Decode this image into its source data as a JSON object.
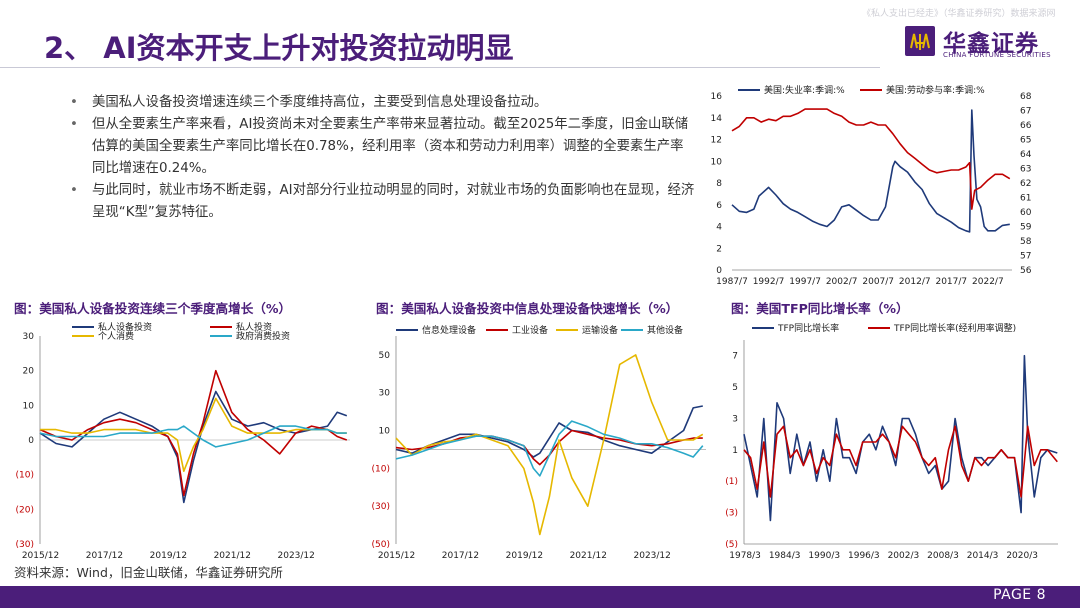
{
  "header": {
    "title": "2、 AI资本开支上升对投资拉动明显",
    "watermark": "《私人支出已经走》（华鑫证券研究）数据来源网",
    "logo_cn": "华鑫证券",
    "logo_en": "CHINA FORTUNE SECURITIES"
  },
  "bullets": [
    "美国私人设备投资增速连续三个季度维持高位，主要受到信息处理设备拉动。",
    "但从全要素生产率来看，AI投资尚未对全要素生产率带来显著拉动。截至2025年二季度，旧金山联储估算的美国全要素生产率同比增长在0.78%，经利用率（资本和劳动力利用率）调整的全要素生产率同比增速在0.24%。",
    "与此同时，就业市场不断走弱，AI对部分行业拉动明显的同时，对就业市场的负面影响也在显现，经济呈现“K型”复苏特征。"
  ],
  "captions": {
    "chart1": "图：美国私人设备投资连续三个季度高增长（%）",
    "chart2": "图：美国私人设备投资中信息处理设备快速增长（%）",
    "chart3": "图：美国TFP同比增长率（%）"
  },
  "source": "资料来源：Wind，旧金山联储，华鑫证券研究所",
  "footer": {
    "page": "PAGE 8"
  },
  "chart_data": [
    {
      "id": "unemployment",
      "type": "line",
      "title": "",
      "x_ticks": [
        "1987/7",
        "1992/7",
        "1997/7",
        "2002/7",
        "2007/7",
        "2012/7",
        "2017/7",
        "2022/7"
      ],
      "x_range": [
        1987.5,
        2025.8
      ],
      "ylim_left": [
        0,
        16
      ],
      "yticks_left": [
        "0",
        "2",
        "4",
        "6",
        "8",
        "10",
        "12",
        "14",
        "16"
      ],
      "ylim_right": [
        56,
        68
      ],
      "yticks_right": [
        "56",
        "57",
        "58",
        "59",
        "60",
        "61",
        "62",
        "63",
        "64",
        "65",
        "66",
        "67",
        "68"
      ],
      "series": [
        {
          "name": "美国:失业率:季调:%",
          "axis": "left",
          "color": "#1f3a7a",
          "x": [
            1987.5,
            1988.5,
            1989.5,
            1990.5,
            1991.2,
            1992.5,
            1993.5,
            1994.5,
            1995.5,
            1996.5,
            1997.5,
            1998.5,
            1999.5,
            2000.5,
            2001.5,
            2002.5,
            2003.5,
            2004.5,
            2005.5,
            2006.5,
            2007.5,
            2008.5,
            2009.5,
            2009.8,
            2010.5,
            2011.5,
            2012.5,
            2013.5,
            2014.5,
            2015.5,
            2016.5,
            2017.5,
            2018.5,
            2019.5,
            2020.0,
            2020.3,
            2020.6,
            2021.0,
            2021.5,
            2022.0,
            2022.5,
            2023.5,
            2024.5,
            2025.5
          ],
          "y": [
            6.0,
            5.4,
            5.3,
            5.6,
            6.8,
            7.6,
            6.9,
            6.1,
            5.6,
            5.3,
            4.9,
            4.5,
            4.2,
            4.0,
            4.6,
            5.8,
            6.0,
            5.5,
            5.0,
            4.6,
            4.6,
            5.8,
            9.5,
            10.0,
            9.5,
            9.0,
            8.1,
            7.4,
            6.1,
            5.2,
            4.8,
            4.4,
            3.9,
            3.6,
            3.5,
            14.7,
            10.5,
            6.5,
            5.8,
            4.0,
            3.6,
            3.6,
            4.1,
            4.2
          ]
        },
        {
          "name": "美国:劳动参与率:季调:%",
          "axis": "right",
          "color": "#c00000",
          "x": [
            1987.5,
            1988.5,
            1989.5,
            1990.5,
            1991.5,
            1992.5,
            1993.5,
            1994.5,
            1995.5,
            1996.5,
            1997.5,
            1998.5,
            1999.5,
            2000.5,
            2001.5,
            2002.5,
            2003.5,
            2004.5,
            2005.5,
            2006.5,
            2007.5,
            2008.5,
            2009.5,
            2010.5,
            2011.5,
            2012.5,
            2013.5,
            2014.5,
            2015.5,
            2016.5,
            2017.5,
            2018.5,
            2019.5,
            2020.0,
            2020.3,
            2020.7,
            2021.5,
            2022.5,
            2023.5,
            2024.5,
            2025.5
          ],
          "y": [
            65.6,
            65.9,
            66.5,
            66.5,
            66.2,
            66.4,
            66.3,
            66.6,
            66.6,
            66.8,
            67.1,
            67.1,
            67.1,
            67.1,
            66.8,
            66.6,
            66.2,
            66.0,
            66.0,
            66.2,
            66.0,
            66.0,
            65.4,
            64.7,
            64.1,
            63.7,
            63.3,
            62.9,
            62.7,
            62.8,
            62.9,
            62.9,
            63.1,
            63.4,
            60.2,
            61.5,
            61.7,
            62.2,
            62.6,
            62.6,
            62.3
          ]
        }
      ]
    },
    {
      "id": "private_investment",
      "type": "line",
      "x_ticks": [
        "2015/12",
        "2017/12",
        "2019/12",
        "2021/12",
        "2023/12"
      ],
      "x_range": [
        2015.9,
        2025.6
      ],
      "ylim": [
        -30,
        30
      ],
      "yticks": [
        "30",
        "20",
        "10",
        "0",
        "(10)",
        "(20)",
        "(30)"
      ],
      "series": [
        {
          "name": "私人设备投资",
          "color": "#1f3a7a",
          "x": [
            2015.9,
            2016.4,
            2016.9,
            2017.4,
            2017.9,
            2018.4,
            2018.9,
            2019.4,
            2019.9,
            2020.2,
            2020.4,
            2020.7,
            2021.0,
            2021.4,
            2021.9,
            2022.4,
            2022.9,
            2023.4,
            2023.9,
            2024.4,
            2024.9,
            2025.2,
            2025.5
          ],
          "y": [
            2,
            -1,
            -2,
            2,
            6,
            8,
            6,
            4,
            1,
            -5,
            -18,
            -6,
            4,
            14,
            6,
            4,
            5,
            3,
            2,
            3,
            4,
            8,
            7
          ]
        },
        {
          "name": "私人投资",
          "color": "#c00000",
          "x": [
            2015.9,
            2016.4,
            2016.9,
            2017.4,
            2017.9,
            2018.4,
            2018.9,
            2019.4,
            2019.9,
            2020.2,
            2020.4,
            2020.7,
            2021.0,
            2021.4,
            2021.9,
            2022.4,
            2022.9,
            2023.4,
            2023.9,
            2024.4,
            2024.9,
            2025.2,
            2025.5
          ],
          "y": [
            3,
            1,
            0,
            3,
            5,
            6,
            5,
            3,
            1,
            -4,
            -16,
            -4,
            5,
            20,
            8,
            3,
            0,
            -4,
            2,
            4,
            3,
            1,
            0
          ]
        },
        {
          "name": "个人消费",
          "color": "#e6b800",
          "x": [
            2015.9,
            2016.4,
            2016.9,
            2017.4,
            2017.9,
            2018.4,
            2018.9,
            2019.4,
            2019.9,
            2020.2,
            2020.4,
            2020.7,
            2021.0,
            2021.4,
            2021.9,
            2022.4,
            2022.9,
            2023.4,
            2023.9,
            2024.4,
            2024.9,
            2025.2,
            2025.5
          ],
          "y": [
            3,
            3,
            2,
            2,
            3,
            3,
            3,
            2,
            2,
            0,
            -9,
            -2,
            3,
            12,
            4,
            2,
            2,
            2,
            3,
            3,
            3,
            2,
            2
          ]
        },
        {
          "name": "政府消费投资",
          "color": "#2aa8c8",
          "x": [
            2015.9,
            2016.4,
            2016.9,
            2017.4,
            2017.9,
            2018.4,
            2018.9,
            2019.4,
            2019.9,
            2020.2,
            2020.4,
            2020.7,
            2021.0,
            2021.4,
            2021.9,
            2022.4,
            2022.9,
            2023.4,
            2023.9,
            2024.4,
            2024.9,
            2025.2,
            2025.5
          ],
          "y": [
            2,
            1,
            1,
            1,
            1,
            2,
            2,
            2,
            3,
            3,
            4,
            2,
            0,
            -2,
            -1,
            0,
            2,
            4,
            4,
            3,
            3,
            2,
            2
          ]
        }
      ]
    },
    {
      "id": "info_processing",
      "type": "line",
      "x_ticks": [
        "2015/12",
        "2017/12",
        "2019/12",
        "2021/12",
        "2023/12"
      ],
      "x_range": [
        2015.9,
        2025.6
      ],
      "ylim": [
        -50,
        60
      ],
      "yticks": [
        "50",
        "30",
        "10",
        "(10)",
        "(30)",
        "(50)"
      ],
      "series": [
        {
          "name": "信息处理设备",
          "color": "#1f3a7a",
          "x": [
            2015.9,
            2016.4,
            2016.9,
            2017.4,
            2017.9,
            2018.4,
            2018.9,
            2019.4,
            2019.9,
            2020.2,
            2020.4,
            2020.7,
            2021.0,
            2021.4,
            2021.9,
            2022.4,
            2022.9,
            2023.4,
            2023.9,
            2024.4,
            2024.9,
            2025.2,
            2025.5
          ],
          "y": [
            0,
            -2,
            2,
            5,
            8,
            8,
            6,
            4,
            0,
            -4,
            -2,
            6,
            14,
            10,
            9,
            5,
            2,
            0,
            -2,
            4,
            10,
            22,
            23
          ]
        },
        {
          "name": "工业设备",
          "color": "#c00000",
          "x": [
            2015.9,
            2016.4,
            2016.9,
            2017.4,
            2017.9,
            2018.4,
            2018.9,
            2019.4,
            2019.9,
            2020.2,
            2020.4,
            2020.7,
            2021.0,
            2021.4,
            2021.9,
            2022.4,
            2022.9,
            2023.4,
            2023.9,
            2024.4,
            2024.9,
            2025.2,
            2025.5
          ],
          "y": [
            1,
            0,
            1,
            3,
            6,
            7,
            7,
            5,
            2,
            -5,
            -8,
            -3,
            4,
            10,
            8,
            6,
            5,
            3,
            2,
            3,
            5,
            6,
            6
          ]
        },
        {
          "name": "运输设备",
          "color": "#e6b800",
          "x": [
            2015.9,
            2016.4,
            2016.9,
            2017.4,
            2017.9,
            2018.4,
            2018.9,
            2019.4,
            2019.9,
            2020.2,
            2020.4,
            2020.7,
            2021.0,
            2021.4,
            2021.9,
            2022.4,
            2022.9,
            2023.4,
            2023.9,
            2024.4,
            2024.9,
            2025.2,
            2025.5
          ],
          "y": [
            6,
            -3,
            2,
            4,
            5,
            8,
            5,
            2,
            -10,
            -28,
            -45,
            -25,
            5,
            -15,
            -30,
            5,
            45,
            50,
            25,
            5,
            5,
            5,
            8
          ]
        },
        {
          "name": "其他设备",
          "color": "#2aa8c8",
          "x": [
            2015.9,
            2016.4,
            2016.9,
            2017.4,
            2017.9,
            2018.4,
            2018.9,
            2019.4,
            2019.9,
            2020.2,
            2020.4,
            2020.7,
            2021.0,
            2021.4,
            2021.9,
            2022.4,
            2022.9,
            2023.4,
            2023.9,
            2024.4,
            2024.9,
            2025.2,
            2025.5
          ],
          "y": [
            -5,
            -3,
            0,
            3,
            5,
            7,
            7,
            5,
            2,
            -10,
            -14,
            -3,
            8,
            15,
            12,
            8,
            6,
            3,
            3,
            1,
            -2,
            -4,
            2
          ]
        }
      ]
    },
    {
      "id": "tfp",
      "type": "line",
      "x_ticks": [
        "1978/3",
        "1984/3",
        "1990/3",
        "1996/3",
        "2002/3",
        "2008/3",
        "2014/3",
        "2020/3"
      ],
      "x_range": [
        1978.0,
        2025.6
      ],
      "ylim": [
        -5,
        8
      ],
      "yticks": [
        "7",
        "5",
        "3",
        "1",
        "(1)",
        "(3)",
        "(5)"
      ],
      "series": [
        {
          "name": "TFP同比增长率",
          "color": "#1f3a7a",
          "x": [
            1978,
            1979,
            1980,
            1981,
            1982,
            1983,
            1984,
            1985,
            1986,
            1987,
            1988,
            1989,
            1990,
            1991,
            1992,
            1993,
            1994,
            1995,
            1996,
            1997,
            1998,
            1999,
            2000,
            2001,
            2002,
            2003,
            2004,
            2005,
            2006,
            2007,
            2008,
            2009,
            2010,
            2011,
            2012,
            2013,
            2014,
            2015,
            2016,
            2017,
            2018,
            2019,
            2020,
            2020.5,
            2021,
            2022,
            2023,
            2024,
            2025.5
          ],
          "y": [
            2,
            0,
            -2,
            3,
            -3.5,
            4,
            3,
            -0.5,
            2,
            0,
            1.5,
            -1,
            1,
            -1,
            3,
            0.5,
            0.5,
            -0.5,
            1.5,
            2,
            1,
            2.5,
            1.5,
            0,
            3,
            3,
            2,
            0.5,
            -0.5,
            0,
            -1.5,
            -1,
            3,
            0.5,
            -1,
            0.5,
            0.5,
            0,
            0.5,
            1,
            0.5,
            0.5,
            -3,
            7,
            2,
            -2,
            0.5,
            1,
            0.8
          ]
        },
        {
          "name": "TFP同比增长率(经利用率调整)",
          "color": "#c00000",
          "x": [
            1978,
            1979,
            1980,
            1981,
            1982,
            1983,
            1984,
            1985,
            1986,
            1987,
            1988,
            1989,
            1990,
            1991,
            1992,
            1993,
            1994,
            1995,
            1996,
            1997,
            1998,
            1999,
            2000,
            2001,
            2002,
            2003,
            2004,
            2005,
            2006,
            2007,
            2008,
            2009,
            2010,
            2011,
            2012,
            2013,
            2014,
            2015,
            2016,
            2017,
            2018,
            2019,
            2020,
            2021,
            2022,
            2023,
            2024,
            2025.5
          ],
          "y": [
            1,
            0.5,
            -1.5,
            1.5,
            -2,
            2,
            2.5,
            0.5,
            1,
            0,
            1,
            -0.5,
            0.5,
            0,
            2,
            1,
            1,
            0,
            1.5,
            1.5,
            1.5,
            2,
            1.5,
            0.5,
            2.5,
            2,
            1.5,
            0.5,
            0,
            0.5,
            -1.5,
            1,
            2.5,
            0,
            -1,
            0.5,
            0,
            0.5,
            0.5,
            1,
            0.5,
            0.5,
            -2,
            2.5,
            0,
            1,
            1,
            0.24
          ]
        }
      ]
    }
  ]
}
